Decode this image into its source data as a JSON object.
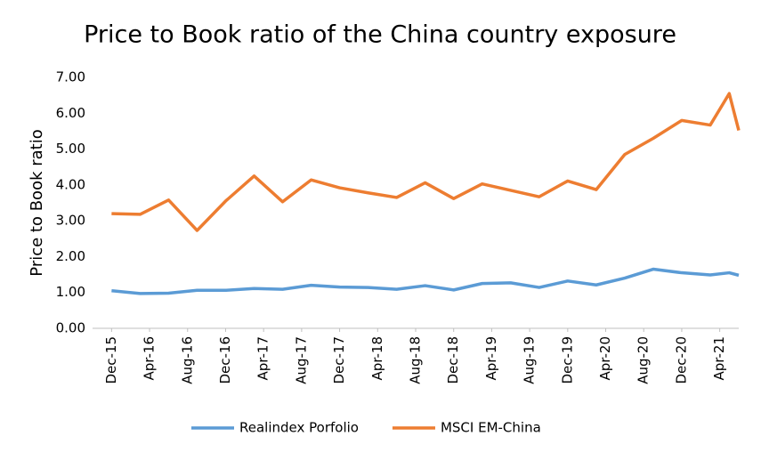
{
  "chart_data": {
    "type": "line",
    "title": "Price to Book ratio of the China country exposure",
    "y_label": "Price to Book ratio",
    "x": [
      "2015-12",
      "2016-03",
      "2016-06",
      "2016-09",
      "2016-12",
      "2017-03",
      "2017-06",
      "2017-09",
      "2017-12",
      "2018-03",
      "2018-06",
      "2018-09",
      "2018-12",
      "2019-03",
      "2019-06",
      "2019-09",
      "2019-12",
      "2020-03",
      "2020-06",
      "2020-09",
      "2020-12",
      "2021-03",
      "2021-05",
      "2021-06"
    ],
    "series": [
      {
        "name": "Realindex Porfolio",
        "color": "#5b9bd5",
        "values": [
          1.05,
          0.97,
          0.98,
          1.06,
          1.06,
          1.11,
          1.09,
          1.2,
          1.15,
          1.14,
          1.09,
          1.19,
          1.07,
          1.25,
          1.27,
          1.14,
          1.32,
          1.21,
          1.4,
          1.65,
          1.55,
          1.49,
          1.55,
          1.48
        ]
      },
      {
        "name": "MSCI EM-China",
        "color": "#ed7d31",
        "values": [
          3.2,
          3.18,
          3.58,
          2.73,
          3.55,
          4.25,
          3.53,
          4.14,
          3.92,
          3.78,
          3.65,
          4.06,
          3.62,
          4.03,
          3.85,
          3.67,
          4.11,
          3.87,
          4.85,
          5.3,
          5.8,
          5.67,
          6.55,
          5.52
        ]
      }
    ],
    "xlim": [
      "2015-10",
      "2021-06"
    ],
    "xticks": [
      {
        "value": "2015-12",
        "label": "Dec-15"
      },
      {
        "value": "2016-04",
        "label": "Apr-16"
      },
      {
        "value": "2016-08",
        "label": "Aug-16"
      },
      {
        "value": "2016-12",
        "label": "Dec-16"
      },
      {
        "value": "2017-04",
        "label": "Apr-17"
      },
      {
        "value": "2017-08",
        "label": "Aug-17"
      },
      {
        "value": "2017-12",
        "label": "Dec-17"
      },
      {
        "value": "2018-04",
        "label": "Apr-18"
      },
      {
        "value": "2018-08",
        "label": "Aug-18"
      },
      {
        "value": "2018-12",
        "label": "Dec-18"
      },
      {
        "value": "2019-04",
        "label": "Apr-19"
      },
      {
        "value": "2019-08",
        "label": "Aug-19"
      },
      {
        "value": "2019-12",
        "label": "Dec-19"
      },
      {
        "value": "2020-04",
        "label": "Apr-20"
      },
      {
        "value": "2020-08",
        "label": "Aug-20"
      },
      {
        "value": "2020-12",
        "label": "Dec-20"
      },
      {
        "value": "2021-04",
        "label": "Apr-21"
      }
    ],
    "ylim": [
      0,
      7
    ],
    "yticks": [
      {
        "value": 0,
        "label": "0.00"
      },
      {
        "value": 1,
        "label": "1.00"
      },
      {
        "value": 2,
        "label": "2.00"
      },
      {
        "value": 3,
        "label": "3.00"
      },
      {
        "value": 4,
        "label": "4.00"
      },
      {
        "value": 5,
        "label": "5.00"
      },
      {
        "value": 6,
        "label": "6.00"
      },
      {
        "value": 7,
        "label": "7.00"
      }
    ],
    "legend": "bottom"
  }
}
